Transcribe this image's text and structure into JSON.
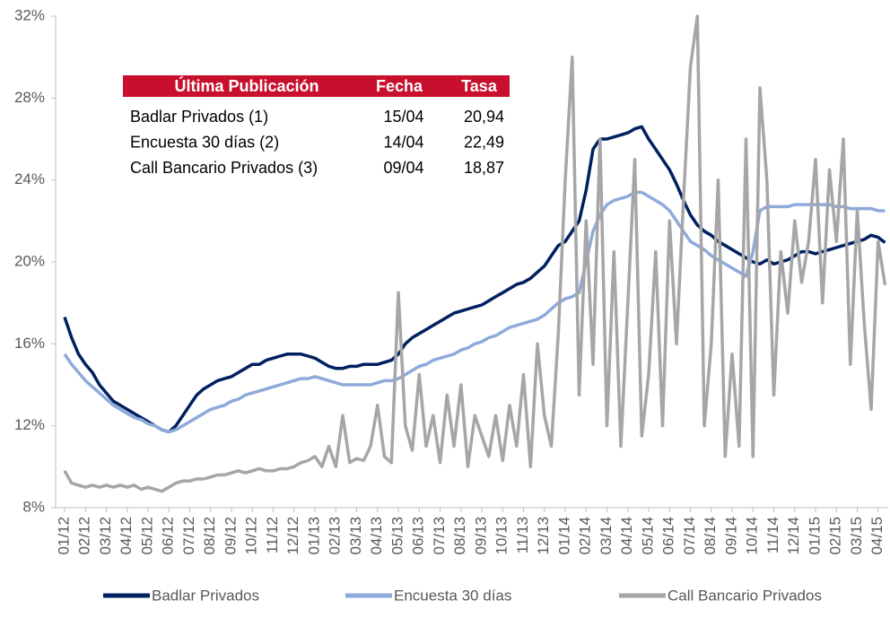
{
  "chart_data": {
    "type": "line",
    "categories": [
      "01/12",
      null,
      null,
      "02/12",
      null,
      null,
      "03/12",
      null,
      null,
      "04/12",
      null,
      null,
      "05/12",
      null,
      null,
      "06/12",
      null,
      null,
      "07/12",
      null,
      null,
      "08/12",
      null,
      null,
      "09/12",
      null,
      null,
      "10/12",
      null,
      null,
      "11/12",
      null,
      null,
      "12/12",
      null,
      null,
      "01/13",
      null,
      null,
      "02/13",
      null,
      null,
      "03/13",
      null,
      null,
      "04/13",
      null,
      null,
      "05/13",
      null,
      null,
      "06/13",
      null,
      null,
      "07/13",
      null,
      null,
      "08/13",
      null,
      null,
      "09/13",
      null,
      null,
      "10/13",
      null,
      null,
      "11/13",
      null,
      null,
      "12/13",
      null,
      null,
      "01/14",
      null,
      null,
      "02/14",
      null,
      null,
      "03/14",
      null,
      null,
      "04/14",
      null,
      null,
      "05/14",
      null,
      null,
      "06/14",
      null,
      null,
      "07/14",
      null,
      null,
      "08/14",
      null,
      null,
      "09/14",
      null,
      null,
      "10/14",
      null,
      null,
      "11/14",
      null,
      null,
      "12/14",
      null,
      null,
      "01/15",
      null,
      null,
      "02/15",
      null,
      null,
      "03/15",
      null,
      null,
      "04/15",
      null
    ],
    "series": [
      {
        "name": "Badlar Privados",
        "color": "#002060",
        "values": [
          17.3,
          16.3,
          15.5,
          15.0,
          14.6,
          14.0,
          13.6,
          13.2,
          13.0,
          12.8,
          12.6,
          12.4,
          12.2,
          12.0,
          11.8,
          11.7,
          12.0,
          12.5,
          13.0,
          13.5,
          13.8,
          14.0,
          14.2,
          14.3,
          14.4,
          14.6,
          14.8,
          15.0,
          15.0,
          15.2,
          15.3,
          15.4,
          15.5,
          15.5,
          15.5,
          15.4,
          15.3,
          15.1,
          14.9,
          14.8,
          14.8,
          14.9,
          14.9,
          15.0,
          15.0,
          15.0,
          15.1,
          15.2,
          15.5,
          16.0,
          16.3,
          16.5,
          16.7,
          16.9,
          17.1,
          17.3,
          17.5,
          17.6,
          17.7,
          17.8,
          17.9,
          18.1,
          18.3,
          18.5,
          18.7,
          18.9,
          19.0,
          19.2,
          19.5,
          19.8,
          20.3,
          20.8,
          21.0,
          21.5,
          22.0,
          23.5,
          25.5,
          26.0,
          26.0,
          26.1,
          26.2,
          26.3,
          26.5,
          26.6,
          26.0,
          25.5,
          25.0,
          24.5,
          23.8,
          23.0,
          22.3,
          21.8,
          21.5,
          21.3,
          21.0,
          20.8,
          20.6,
          20.4,
          20.2,
          20.0,
          19.9,
          20.1,
          19.9,
          20.0,
          20.1,
          20.3,
          20.5,
          20.5,
          20.4,
          20.5,
          20.6,
          20.7,
          20.8,
          20.9,
          21.0,
          21.1,
          21.3,
          21.2,
          20.94
        ]
      },
      {
        "name": "Encuesta 30 días",
        "color": "#8eaadb",
        "values": [
          15.5,
          15.0,
          14.6,
          14.2,
          13.9,
          13.6,
          13.3,
          13.0,
          12.8,
          12.6,
          12.4,
          12.3,
          12.1,
          12.0,
          11.8,
          11.7,
          11.8,
          12.0,
          12.2,
          12.4,
          12.6,
          12.8,
          12.9,
          13.0,
          13.2,
          13.3,
          13.5,
          13.6,
          13.7,
          13.8,
          13.9,
          14.0,
          14.1,
          14.2,
          14.3,
          14.3,
          14.4,
          14.3,
          14.2,
          14.1,
          14.0,
          14.0,
          14.0,
          14.0,
          14.0,
          14.1,
          14.2,
          14.2,
          14.3,
          14.5,
          14.7,
          14.9,
          15.0,
          15.2,
          15.3,
          15.4,
          15.5,
          15.7,
          15.8,
          16.0,
          16.1,
          16.3,
          16.4,
          16.6,
          16.8,
          16.9,
          17.0,
          17.1,
          17.2,
          17.4,
          17.7,
          18.0,
          18.2,
          18.3,
          18.5,
          20.0,
          21.5,
          22.3,
          22.8,
          23.0,
          23.1,
          23.2,
          23.4,
          23.4,
          23.2,
          23.0,
          22.8,
          22.5,
          22.0,
          21.5,
          21.0,
          20.8,
          20.6,
          20.3,
          20.1,
          19.9,
          19.7,
          19.5,
          19.3,
          20.5,
          22.5,
          22.7,
          22.7,
          22.7,
          22.7,
          22.8,
          22.8,
          22.8,
          22.8,
          22.8,
          22.8,
          22.7,
          22.7,
          22.6,
          22.6,
          22.6,
          22.6,
          22.5,
          22.49
        ]
      },
      {
        "name": "Call Bancario Privados",
        "color": "#a6a6a6",
        "values": [
          9.8,
          9.2,
          9.1,
          9.0,
          9.1,
          9.0,
          9.1,
          9.0,
          9.1,
          9.0,
          9.1,
          8.9,
          9.0,
          8.9,
          8.8,
          9.0,
          9.2,
          9.3,
          9.3,
          9.4,
          9.4,
          9.5,
          9.6,
          9.6,
          9.7,
          9.8,
          9.7,
          9.8,
          9.9,
          9.8,
          9.8,
          9.9,
          9.9,
          10.0,
          10.2,
          10.3,
          10.5,
          10.0,
          11.0,
          10.0,
          12.5,
          10.2,
          10.4,
          10.3,
          11.0,
          13.0,
          10.5,
          10.2,
          18.5,
          12.0,
          10.8,
          14.5,
          11.0,
          12.5,
          10.2,
          13.5,
          11.0,
          14.0,
          10.0,
          12.5,
          11.5,
          10.5,
          12.5,
          10.3,
          13.0,
          11.0,
          14.5,
          10.0,
          16.0,
          12.5,
          11.0,
          16.5,
          24.0,
          30.0,
          13.5,
          22.0,
          15.0,
          26.0,
          12.0,
          20.5,
          11.0,
          18.0,
          25.0,
          11.5,
          14.5,
          20.5,
          12.0,
          22.0,
          16.0,
          23.0,
          29.5,
          32.0,
          12.0,
          16.0,
          24.0,
          10.5,
          15.5,
          11.0,
          26.0,
          10.5,
          28.5,
          24.0,
          13.5,
          20.5,
          17.5,
          22.0,
          19.0,
          21.0,
          25.0,
          18.0,
          24.5,
          21.0,
          26.0,
          15.0,
          22.5,
          17.0,
          12.8,
          21.0,
          18.87
        ]
      }
    ],
    "ylim": [
      8,
      32
    ],
    "yticks": [
      {
        "value": 8,
        "label": "8%"
      },
      {
        "value": 12,
        "label": "12%"
      },
      {
        "value": 16,
        "label": "16%"
      },
      {
        "value": 20,
        "label": "20%"
      },
      {
        "value": 24,
        "label": "24%"
      },
      {
        "value": 28,
        "label": "28%"
      },
      {
        "value": 32,
        "label": "32%"
      }
    ],
    "grid": false,
    "legend": "bottom",
    "table": {
      "columns": [
        "Última Publicación",
        "Fecha",
        "Tasa"
      ],
      "header_color": "#c8102e",
      "rows": [
        [
          "Badlar Privados (1)",
          "15/04",
          "20,94"
        ],
        [
          "Encuesta 30 días (2)",
          "14/04",
          "22,49"
        ],
        [
          "Call Bancario Privados (3)",
          "09/04",
          "18,87"
        ]
      ]
    }
  }
}
